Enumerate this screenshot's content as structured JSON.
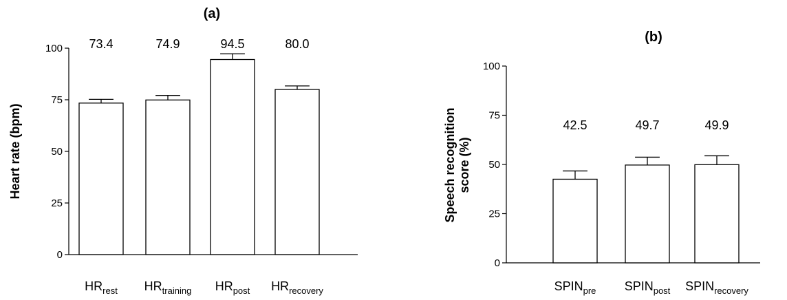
{
  "chart_data": [
    {
      "type": "bar",
      "title": "(a)",
      "ylabel": "Heart rate (bpm)",
      "ylim": [
        0,
        100
      ],
      "yticks": [
        0,
        25,
        50,
        75,
        100
      ],
      "grid": false,
      "categories": [
        {
          "base": "HR",
          "sub": "rest"
        },
        {
          "base": "HR",
          "sub": "training"
        },
        {
          "base": "HR",
          "sub": "post"
        },
        {
          "base": "HR",
          "sub": "recovery"
        }
      ],
      "values": [
        73.4,
        74.9,
        94.5,
        80.0
      ],
      "errors": [
        1.8,
        2.2,
        2.8,
        1.7
      ],
      "value_labels": [
        "73.4",
        "74.9",
        "94.5",
        "80.0"
      ]
    },
    {
      "type": "bar",
      "title": "(b)",
      "ylabel": [
        "Speech recognition",
        "score (%)"
      ],
      "ylim": [
        0,
        100
      ],
      "yticks": [
        0,
        25,
        50,
        75,
        100
      ],
      "grid": false,
      "categories": [
        {
          "base": "SPIN",
          "sub": "pre"
        },
        {
          "base": "SPIN",
          "sub": "post"
        },
        {
          "base": "SPIN",
          "sub": "recovery"
        }
      ],
      "values": [
        42.5,
        49.7,
        49.9
      ],
      "errors": [
        4.2,
        4.0,
        4.5
      ],
      "value_labels": [
        "42.5",
        "49.7",
        "49.9"
      ]
    }
  ]
}
